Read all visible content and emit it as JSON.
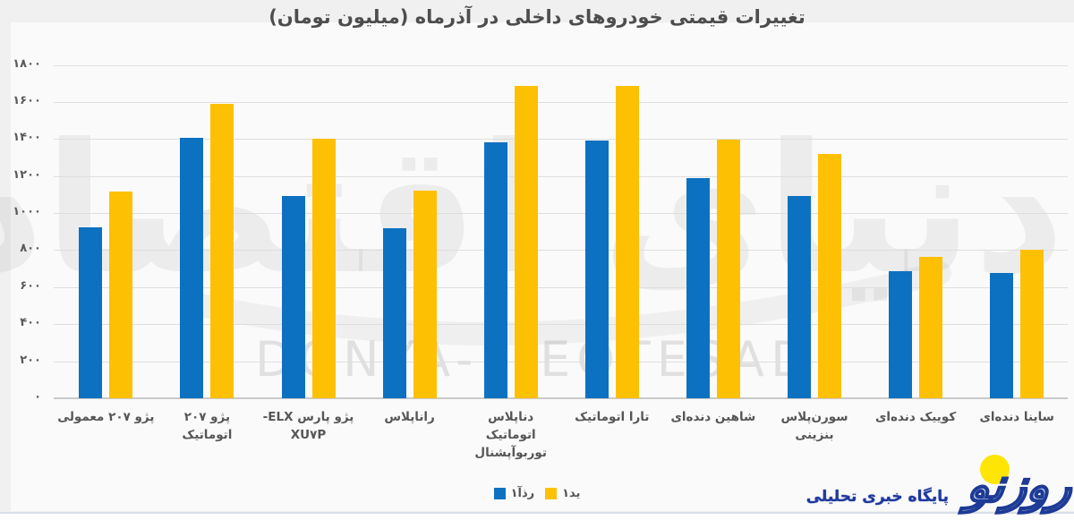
{
  "title": "تغییرات قیمتی خودروهای داخلی در آذرماه (میلیون تومان)",
  "chart_data": {
    "type": "bar",
    "title": "تغییرات قیمتی خودروهای داخلی در آذرماه (میلیون تومان)",
    "unit": "میلیون تومان",
    "categories": [
      "پژو ۲۰۷ معمولی",
      "پژو ۲۰۷\nاتوماتیک",
      "پژو پارس ELX-\nXU۷P",
      "راناپلاس",
      "دناپلاس\nاتوماتیک\nتوربوآپشنال",
      "تارا اتوماتیک",
      "شاهین دنده‌ای",
      "سورن‌پلاس\nبنزینی",
      "کوییک دنده‌ای",
      "ساینا دنده‌ای"
    ],
    "series": [
      {
        "name": "۱آذر",
        "color": "#0d71c1",
        "values": [
          925,
          1405,
          1090,
          920,
          1380,
          1390,
          1190,
          1090,
          685,
          675
        ]
      },
      {
        "name": "۱دی",
        "color": "#fec003",
        "values": [
          1115,
          1590,
          1400,
          1120,
          1685,
          1685,
          1395,
          1320,
          765,
          800
        ]
      }
    ],
    "ylim": [
      0,
      1800
    ],
    "y_ticks": [
      {
        "value": 1800,
        "label": "۱۸۰۰"
      },
      {
        "value": 1600,
        "label": "۱۶۰۰"
      },
      {
        "value": 1400,
        "label": "۱۴۰۰"
      },
      {
        "value": 1200,
        "label": "۱۲۰۰"
      },
      {
        "value": 1000,
        "label": "۱۰۰۰"
      },
      {
        "value": 800,
        "label": "۸۰۰"
      },
      {
        "value": 600,
        "label": "۶۰۰"
      },
      {
        "value": 400,
        "label": "۴۰۰"
      },
      {
        "value": 200,
        "label": "۲۰۰"
      },
      {
        "value": 0,
        "label": "۰"
      }
    ],
    "grid": true,
    "legend_position": "bottom-center"
  },
  "legend": {
    "items": [
      {
        "label": "۱آذر",
        "color": "#0d71c1"
      },
      {
        "label": "۱دی",
        "color": "#fec003"
      }
    ]
  },
  "watermark": {
    "persian": "دنیای اقتصاد",
    "latin": "DONYA-E-EQTESAD"
  },
  "logo": {
    "tagline": "پایگاه خبری تحلیلی",
    "wordmark": "روزنو",
    "sun_color": "#ffe503",
    "blue": "#1d3a96"
  }
}
